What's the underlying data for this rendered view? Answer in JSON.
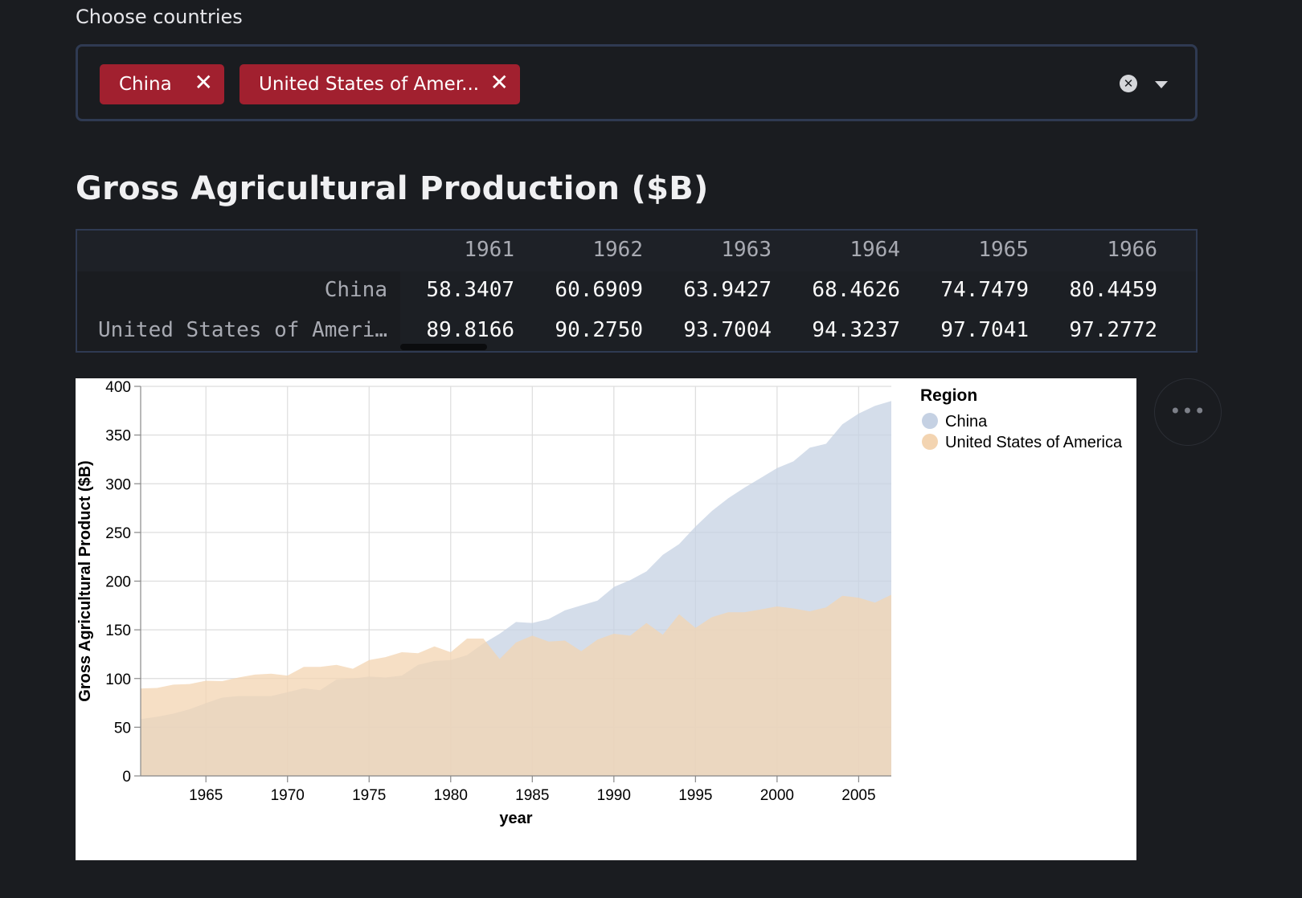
{
  "multiselect": {
    "label": "Choose countries",
    "chips": [
      "China",
      "United States of Amer..."
    ],
    "remove_glyph": "✕",
    "clear_glyph": "✕"
  },
  "title": "Gross Agricultural Production ($B)",
  "dataframe": {
    "columns": [
      "1961",
      "1962",
      "1963",
      "1964",
      "1965",
      "1966"
    ],
    "rows": [
      {
        "label": "China",
        "values": [
          "58.3407",
          "60.6909",
          "63.9427",
          "68.4626",
          "74.7479",
          "80.4459"
        ]
      },
      {
        "label": "United States of Ameri…",
        "values": [
          "89.8166",
          "90.2750",
          "93.7004",
          "94.3237",
          "97.7041",
          "97.2772"
        ]
      }
    ]
  },
  "more_menu": "•••",
  "chart_data": {
    "type": "area",
    "stacked": false,
    "xlabel": "year",
    "ylabel": "Gross Agricultural Product ($B)",
    "xlim": [
      1961,
      2007
    ],
    "ylim": [
      0,
      400
    ],
    "x_ticks": [
      1965,
      1970,
      1975,
      1980,
      1985,
      1990,
      1995,
      2000,
      2005
    ],
    "y_ticks": [
      0,
      50,
      100,
      150,
      200,
      250,
      300,
      350,
      400
    ],
    "grid": true,
    "legend": {
      "title": "Region",
      "position": "right"
    },
    "x": [
      1961,
      1962,
      1963,
      1964,
      1965,
      1966,
      1967,
      1968,
      1969,
      1970,
      1971,
      1972,
      1973,
      1974,
      1975,
      1976,
      1977,
      1978,
      1979,
      1980,
      1981,
      1982,
      1983,
      1984,
      1985,
      1986,
      1987,
      1988,
      1989,
      1990,
      1991,
      1992,
      1993,
      1994,
      1995,
      1996,
      1997,
      1998,
      1999,
      2000,
      2001,
      2002,
      2003,
      2004,
      2005,
      2006,
      2007
    ],
    "series": [
      {
        "name": "China",
        "color": "#c5d1e3",
        "values": [
          58.34,
          60.69,
          63.94,
          68.46,
          74.75,
          80.45,
          82,
          82,
          82,
          86,
          90,
          88,
          99,
          100,
          102,
          101,
          103,
          114,
          118,
          119,
          124,
          136,
          146,
          158,
          157,
          161,
          170,
          175,
          180,
          194,
          201,
          210,
          227,
          238,
          256,
          272,
          285,
          296,
          306,
          316,
          323,
          337,
          341,
          361,
          372,
          380,
          385
        ]
      },
      {
        "name": "United States of America",
        "color": "#f3d4b1",
        "values": [
          89.82,
          90.28,
          93.7,
          94.32,
          97.7,
          97.28,
          101,
          104,
          105,
          103,
          112,
          112,
          114,
          110,
          119,
          122,
          127,
          126,
          133,
          127,
          141,
          141,
          120,
          137,
          144,
          138,
          139,
          128,
          140,
          146,
          144,
          157,
          145,
          166,
          152,
          163,
          168,
          168,
          171,
          174,
          172,
          169,
          173,
          185,
          183,
          178,
          186
        ]
      }
    ]
  }
}
